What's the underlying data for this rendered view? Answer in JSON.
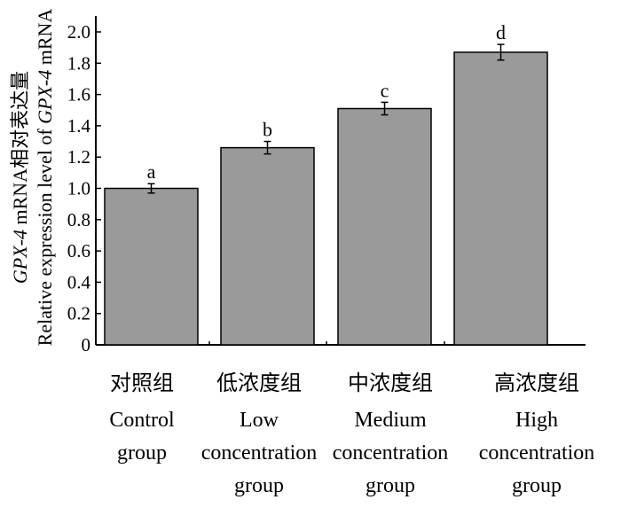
{
  "chart_data": {
    "type": "bar",
    "ylabel_cn": "mRNA相对表达量",
    "ylabel_en": "Relative expression level of",
    "ylabel_gene": "GPX-4",
    "ylabel_unit": "mRNA",
    "ylim": [
      0,
      2.0
    ],
    "yticks": [
      "0",
      "0.2",
      "0.4",
      "0.6",
      "0.8",
      "1.0",
      "1.2",
      "1.4",
      "1.6",
      "1.8",
      "2.0"
    ],
    "categories": [
      {
        "cn": "对照组",
        "en": [
          "Control",
          "group"
        ]
      },
      {
        "cn": "低浓度组",
        "en": [
          "Low",
          "concentration",
          "group"
        ]
      },
      {
        "cn": "中浓度组",
        "en": [
          "Medium",
          "concentration",
          "group"
        ]
      },
      {
        "cn": "高浓度组",
        "en": [
          "High",
          "concentration",
          "group"
        ]
      }
    ],
    "values": [
      1.0,
      1.26,
      1.51,
      1.87
    ],
    "errors": [
      0.03,
      0.04,
      0.04,
      0.05
    ],
    "significance": [
      "a",
      "b",
      "c",
      "d"
    ],
    "bar_color": "#9a9a9a",
    "grid": false,
    "legend": "none"
  }
}
